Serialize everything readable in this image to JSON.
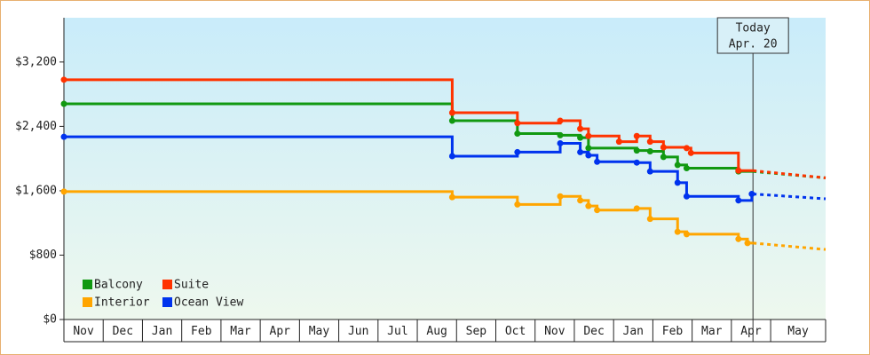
{
  "chart_data": {
    "type": "step-line",
    "xlim": [
      0,
      19.4
    ],
    "xticks": [
      {
        "value": 0,
        "label": "Nov"
      },
      {
        "value": 1,
        "label": "Dec"
      },
      {
        "value": 2,
        "label": "Jan"
      },
      {
        "value": 3,
        "label": "Feb"
      },
      {
        "value": 4,
        "label": "Mar"
      },
      {
        "value": 5,
        "label": "Apr"
      },
      {
        "value": 6,
        "label": "May"
      },
      {
        "value": 7,
        "label": "Jun"
      },
      {
        "value": 8,
        "label": "Jul"
      },
      {
        "value": 9,
        "label": "Aug"
      },
      {
        "value": 10,
        "label": "Sep"
      },
      {
        "value": 11,
        "label": "Oct"
      },
      {
        "value": 12,
        "label": "Nov"
      },
      {
        "value": 13,
        "label": "Dec"
      },
      {
        "value": 14,
        "label": "Jan"
      },
      {
        "value": 15,
        "label": "Feb"
      },
      {
        "value": 16,
        "label": "Mar"
      },
      {
        "value": 17,
        "label": "Apr"
      },
      {
        "value": 18,
        "label": "May"
      }
    ],
    "ylim": [
      0,
      3750
    ],
    "yticks": [
      {
        "value": 0,
        "label": "$0"
      },
      {
        "value": 800,
        "label": "$800"
      },
      {
        "value": 1600,
        "label": "$1,600"
      },
      {
        "value": 2400,
        "label": "$2,400"
      },
      {
        "value": 3200,
        "label": "$3,200"
      }
    ],
    "today": {
      "x": 17.55,
      "lines": [
        "Today",
        "Apr. 20"
      ]
    },
    "series": [
      {
        "name": "Balcony",
        "color": "#119911",
        "x": [
          0,
          9.89,
          11.55,
          12.64,
          13.15,
          13.36,
          14.59,
          14.93,
          15.27,
          15.63,
          15.86,
          17.18
        ],
        "values": [
          2680,
          2470,
          2310,
          2290,
          2260,
          2130,
          2100,
          2090,
          2020,
          1920,
          1880,
          1840
        ],
        "projection_x": [
          17.55,
          19.4
        ],
        "projection_values": [
          1840,
          1760
        ]
      },
      {
        "name": "Suite",
        "color": "#ff3300",
        "x": [
          0,
          9.89,
          11.55,
          12.64,
          13.15,
          13.36,
          14.14,
          14.59,
          14.93,
          15.27,
          15.86,
          15.97,
          17.18
        ],
        "values": [
          2980,
          2570,
          2440,
          2470,
          2370,
          2280,
          2210,
          2280,
          2210,
          2140,
          2130,
          2070,
          1850
        ],
        "projection_x": [
          17.55,
          19.4
        ],
        "projection_values": [
          1850,
          1760
        ]
      },
      {
        "name": "Interior",
        "color": "#ffa500",
        "x": [
          0,
          9.89,
          11.55,
          12.64,
          13.15,
          13.36,
          13.58,
          14.59,
          14.93,
          15.63,
          15.86,
          17.18,
          17.41
        ],
        "values": [
          1590,
          1520,
          1430,
          1530,
          1480,
          1410,
          1360,
          1380,
          1250,
          1090,
          1060,
          1000,
          950
        ],
        "projection_x": [
          17.55,
          19.4
        ],
        "projection_values": [
          950,
          870
        ]
      },
      {
        "name": "Ocean View",
        "color": "#0033ee",
        "x": [
          0,
          9.89,
          11.55,
          12.64,
          13.15,
          13.36,
          13.58,
          14.59,
          14.93,
          15.63,
          15.86,
          17.18,
          17.52
        ],
        "values": [
          2270,
          2030,
          2080,
          2190,
          2080,
          2040,
          1960,
          1950,
          1840,
          1700,
          1530,
          1480,
          1560
        ],
        "projection_x": [
          17.55,
          19.4
        ],
        "projection_values": [
          1560,
          1500
        ]
      }
    ]
  }
}
